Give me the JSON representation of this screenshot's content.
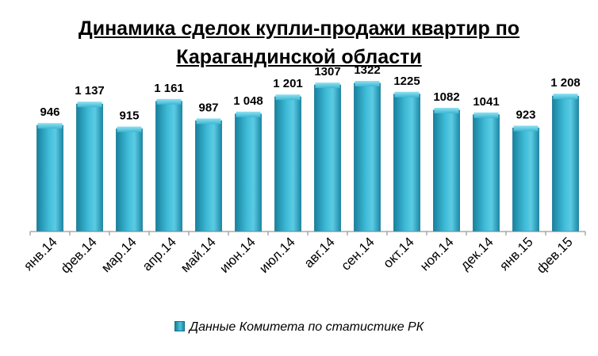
{
  "title_line1": "Динамика сделок купли-продажи квартир по",
  "title_line2": "Карагандинской области",
  "legend_label": "Данные Комитета по статистике РК",
  "colors": {
    "bar": "#2aa6c4",
    "bar_dark": "#17809c",
    "bar_light": "#6fd3ea",
    "axis": "#808080"
  },
  "chart_data": {
    "type": "bar",
    "title": "Динамика сделок купли-продажи квартир по Карагандинской области",
    "categories": [
      "янв.14",
      "фев.14",
      "мар.14",
      "апр.14",
      "май.14",
      "июн.14",
      "июл.14",
      "авг.14",
      "сен.14",
      "окт.14",
      "ноя.14",
      "дек.14",
      "янв.15",
      "фев.15"
    ],
    "series": [
      {
        "name": "Данные Комитета по статистике РК",
        "values": [
          946,
          1137,
          915,
          1161,
          987,
          1048,
          1201,
          1307,
          1322,
          1225,
          1082,
          1041,
          923,
          1208
        ],
        "labels": [
          "946",
          "1 137",
          "915",
          "1 161",
          "987",
          "1 048",
          "1 201",
          "1307",
          "1322",
          "1225",
          "1082",
          "1041",
          "923",
          "1 208"
        ]
      }
    ],
    "ylim": [
      0,
      1400
    ],
    "y_axis_visible": false,
    "grid": false,
    "legend_position": "bottom"
  }
}
